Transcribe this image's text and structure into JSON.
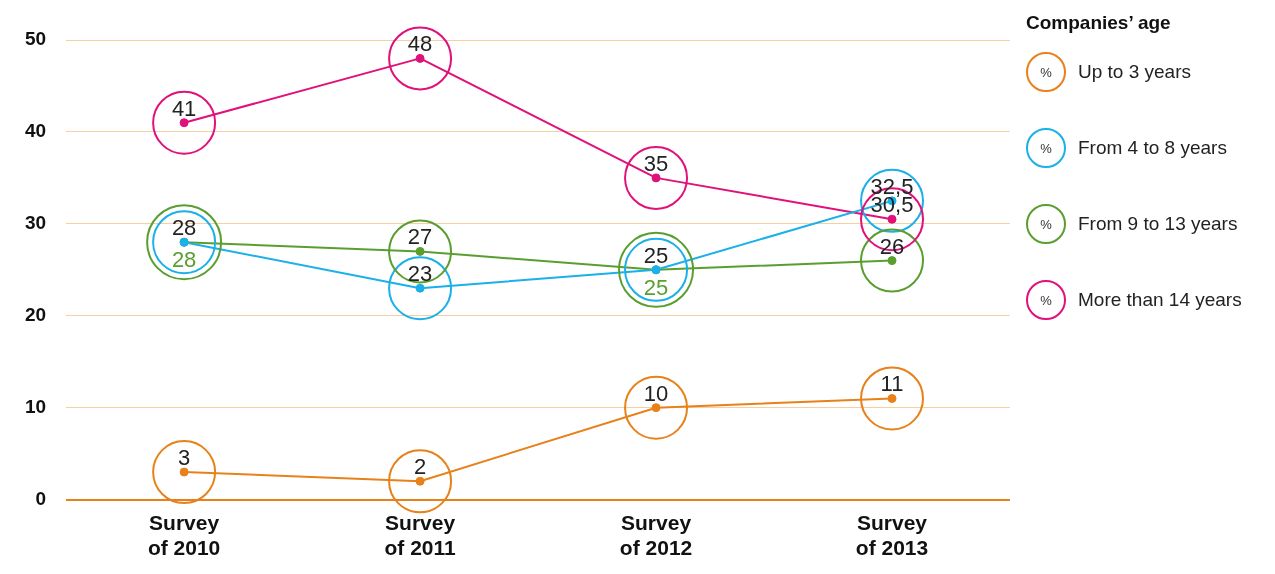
{
  "chart_data": {
    "type": "line",
    "legend_title": "Companies’ age",
    "annotations": [
      "%"
    ],
    "categories": [
      "Survey of 2010",
      "Survey of 2011",
      "Survey of 2012",
      "Survey of 2013"
    ],
    "series": [
      {
        "name": "Up to 3 years",
        "color": "#e8811a",
        "values": [
          3,
          2,
          10,
          11
        ],
        "value_labels": [
          "3",
          "2",
          "10",
          "11"
        ]
      },
      {
        "name": "From 4 to 8 years",
        "color": "#1ab0e8",
        "values": [
          28,
          23,
          25,
          32.5
        ],
        "value_labels": [
          "28",
          "23",
          "25",
          "32,5"
        ]
      },
      {
        "name": "From 9 to 13 years",
        "color": "#5a9e2f",
        "values": [
          28,
          27,
          25,
          26
        ],
        "value_labels": [
          "28",
          "27",
          "25",
          "26"
        ]
      },
      {
        "name": "More than 14 years",
        "color": "#e0117a",
        "values": [
          41,
          48,
          35,
          30.5
        ],
        "value_labels": [
          "41",
          "48",
          "35",
          "30,5"
        ]
      }
    ],
    "ylim": [
      0,
      50
    ],
    "yticks": [
      0,
      10,
      20,
      30,
      40,
      50
    ],
    "grid": "y",
    "legend": "right",
    "marker": "circle",
    "line_style": "solid"
  }
}
